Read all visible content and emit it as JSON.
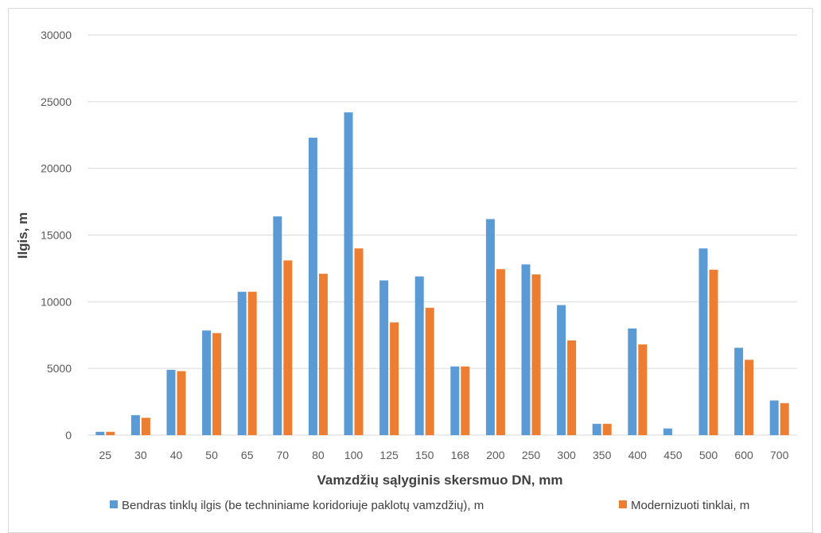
{
  "chart_data": {
    "type": "bar",
    "title": "",
    "xlabel": "Vamzdžių sąlyginis skersmuo DN, mm",
    "ylabel": "Ilgis, m",
    "ylim": [
      0,
      30000
    ],
    "yticks": [
      0,
      5000,
      10000,
      15000,
      20000,
      25000,
      30000
    ],
    "grid": true,
    "legend_position": "bottom",
    "categories": [
      "25",
      "30",
      "40",
      "50",
      "65",
      "70",
      "80",
      "100",
      "125",
      "150",
      "168",
      "200",
      "250",
      "300",
      "350",
      "400",
      "450",
      "500",
      "600",
      "700"
    ],
    "series": [
      {
        "name": "Bendras tinklų ilgis (be techniniame koridoriuje paklotų vamzdžių), m",
        "color": "#5B9BD5",
        "values": [
          250,
          1500,
          4900,
          7850,
          10750,
          16400,
          22300,
          24200,
          11600,
          11900,
          5150,
          16200,
          12800,
          9750,
          850,
          8000,
          500,
          14000,
          6550,
          2600
        ]
      },
      {
        "name": "Modernizuoti tinklai, m",
        "color": "#ED7D31",
        "values": [
          250,
          1300,
          4800,
          7650,
          10750,
          13100,
          12100,
          14000,
          8450,
          9550,
          5150,
          12450,
          12050,
          7100,
          850,
          6800,
          0,
          12400,
          5650,
          2400
        ]
      }
    ]
  }
}
